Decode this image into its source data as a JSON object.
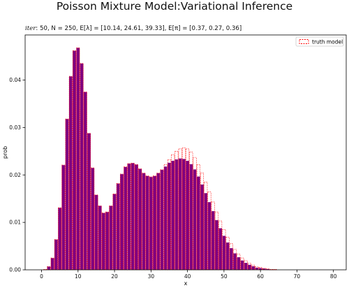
{
  "figure": {
    "suptitle": "Poisson Mixture Model:Variational Inference",
    "subtitle_iter_label": "iter",
    "subtitle_rest": ": 50, N = 250, E[λ] = [10.14, 24.61, 39.33], E[π] = [0.37, 0.27, 0.36]"
  },
  "colors": {
    "bars": "#800080",
    "bar_edge": "#ffffff",
    "truth_edge": "#ff0000",
    "axis": "#000000"
  },
  "chart_data": {
    "type": "bar",
    "xlabel": "x",
    "ylabel": "prob",
    "xlim": [
      -4.5,
      83.5
    ],
    "ylim": [
      0,
      0.0495
    ],
    "xticks": [
      0,
      10,
      20,
      30,
      40,
      50,
      60,
      70,
      80
    ],
    "yticks": [
      0.0,
      0.01,
      0.02,
      0.03,
      0.04
    ],
    "ytick_labels": [
      "0.00",
      "0.01",
      "0.02",
      "0.03",
      "0.04"
    ],
    "grid": false,
    "legend": {
      "position": "top-right",
      "entries": [
        "truth model"
      ]
    },
    "x": [
      0,
      1,
      2,
      3,
      4,
      5,
      6,
      7,
      8,
      9,
      10,
      11,
      12,
      13,
      14,
      15,
      16,
      17,
      18,
      19,
      20,
      21,
      22,
      23,
      24,
      25,
      26,
      27,
      28,
      29,
      30,
      31,
      32,
      33,
      34,
      35,
      36,
      37,
      38,
      39,
      40,
      41,
      42,
      43,
      44,
      45,
      46,
      47,
      48,
      49,
      50,
      51,
      52,
      53,
      54,
      55,
      56,
      57,
      58,
      59,
      60,
      61,
      62,
      63,
      64,
      65,
      66,
      67,
      68,
      69,
      70,
      71,
      72,
      73,
      74,
      75,
      76,
      77,
      78,
      79,
      80
    ],
    "series": [
      {
        "name": "",
        "style": "filled",
        "values": [
          0.0,
          0.0001,
          0.0007,
          0.0025,
          0.0064,
          0.0131,
          0.0221,
          0.0318,
          0.0408,
          0.0462,
          0.0468,
          0.0435,
          0.0375,
          0.0288,
          0.0215,
          0.0158,
          0.0135,
          0.012,
          0.0122,
          0.0135,
          0.016,
          0.0182,
          0.0202,
          0.0217,
          0.0224,
          0.0225,
          0.0222,
          0.0213,
          0.0204,
          0.0198,
          0.0196,
          0.0198,
          0.0204,
          0.0211,
          0.0218,
          0.0226,
          0.023,
          0.0233,
          0.0235,
          0.0234,
          0.023,
          0.0223,
          0.0212,
          0.0197,
          0.018,
          0.0162,
          0.0143,
          0.0124,
          0.0105,
          0.0088,
          0.0072,
          0.0058,
          0.0046,
          0.0035,
          0.0027,
          0.002,
          0.0015,
          0.0011,
          0.0008,
          0.0005,
          0.0004,
          0.0003,
          0.0002,
          0.0001,
          0.0001,
          0.0,
          0.0,
          0.0,
          0.0,
          0.0,
          0.0,
          0.0,
          0.0,
          0.0,
          0.0,
          0.0,
          0.0,
          0.0,
          0.0,
          0.0,
          0.0
        ]
      },
      {
        "name": "truth model",
        "style": "dashed-outline",
        "values": [
          0.0,
          0.0001,
          0.0007,
          0.0025,
          0.0064,
          0.0131,
          0.0221,
          0.0318,
          0.0408,
          0.0462,
          0.0468,
          0.0435,
          0.0375,
          0.0288,
          0.0215,
          0.0158,
          0.0135,
          0.012,
          0.0122,
          0.0135,
          0.016,
          0.0182,
          0.0202,
          0.0217,
          0.0224,
          0.0225,
          0.0222,
          0.0213,
          0.0204,
          0.0198,
          0.0196,
          0.0198,
          0.0204,
          0.0211,
          0.0222,
          0.0232,
          0.0242,
          0.025,
          0.0255,
          0.0257,
          0.0255,
          0.0248,
          0.0237,
          0.0222,
          0.0204,
          0.0185,
          0.0164,
          0.0143,
          0.0122,
          0.0103,
          0.0085,
          0.0069,
          0.0055,
          0.0043,
          0.0033,
          0.0025,
          0.0019,
          0.0014,
          0.001,
          0.0007,
          0.0005,
          0.0003,
          0.0002,
          0.0001,
          0.0001,
          0.0,
          0.0,
          0.0,
          0.0,
          0.0,
          0.0,
          0.0,
          0.0,
          0.0,
          0.0,
          0.0,
          0.0,
          0.0,
          0.0,
          0.0,
          0.0
        ]
      }
    ]
  }
}
